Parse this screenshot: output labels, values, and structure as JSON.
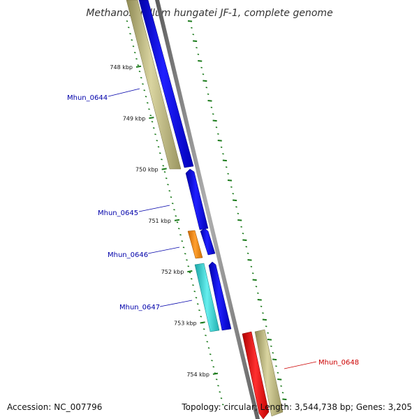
{
  "title": "Methanospirillum hungatei JF-1, complete genome",
  "footer": {
    "accession_prefix": "Accession: ",
    "accession": "NC_007796",
    "topology_prefix": "Topology: ",
    "topology": "circular",
    "length_prefix": "; Length: ",
    "length": "3,544,738 bp",
    "genes_prefix": "; Genes: ",
    "genes": "3,205"
  },
  "scale": {
    "unit": "kbp",
    "major_ticks": [
      {
        "label": "748 kbp",
        "kbp": 748
      },
      {
        "label": "749 kbp",
        "kbp": 749
      },
      {
        "label": "750 kbp",
        "kbp": 750
      },
      {
        "label": "751 kbp",
        "kbp": 751
      },
      {
        "label": "752 kbp",
        "kbp": 752
      },
      {
        "label": "753 kbp",
        "kbp": 753
      },
      {
        "label": "754 kbp",
        "kbp": 754
      }
    ]
  },
  "gene_labels": [
    {
      "name": "Mhun_0644",
      "color": "#0000aa"
    },
    {
      "name": "Mhun_0645",
      "color": "#0000aa"
    },
    {
      "name": "Mhun_0646",
      "color": "#0000aa"
    },
    {
      "name": "Mhun_0647",
      "color": "#0000aa"
    },
    {
      "name": "Mhun_0648",
      "color": "#cc0000"
    }
  ],
  "colors": {
    "cds": "#0000ee",
    "gene": "#b5b07a",
    "trna": "#ff8c00",
    "rrna": "#33cccc",
    "highlight": "#ff0000",
    "backbone": "#808080",
    "ticks": "#1a7a1a"
  }
}
